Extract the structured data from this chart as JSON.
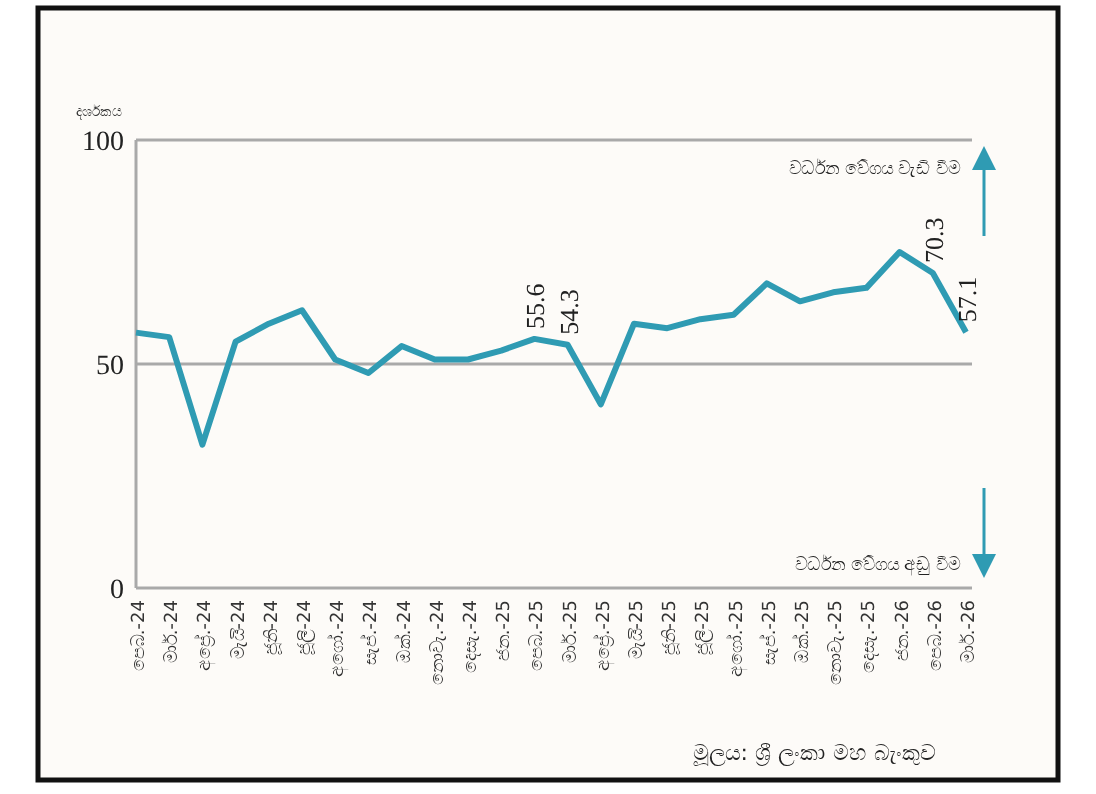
{
  "chart_data": {
    "type": "line",
    "ylabel": "දර්ශකය",
    "categories": [
      "පෙබ.-24",
      "මාර්.-24",
      "අප්‍රේ.-24",
      "මැයි-24",
      "ජූනි-24",
      "ජූලි-24",
      "අගෝ.-24",
      "සැප්.-24",
      "ඔක්.-24",
      "නොවැ.-24",
      "දෙසැ.-24",
      "ජන.-25",
      "පෙබ.-25",
      "මාර්.-25",
      "අප්‍රේ.-25",
      "මැයි-25",
      "ජූනි-25",
      "ජූලි-25",
      "අගෝ.-25",
      "සැප්.-25",
      "ඔක්.-25",
      "නොවැ.-25",
      "දෙසැ.-25",
      "ජන.-26",
      "පෙබ.-26",
      "මාර්.-26"
    ],
    "series": [
      {
        "color": "#2f9bb3",
        "values": [
          57,
          56,
          32,
          55,
          59,
          62,
          51,
          48,
          54,
          51,
          51,
          53,
          55.6,
          54.3,
          41,
          59,
          58,
          60,
          61,
          68,
          64,
          66,
          67,
          75,
          70.3,
          57.1
        ],
        "value_labels": [
          null,
          null,
          null,
          null,
          null,
          null,
          null,
          null,
          null,
          null,
          null,
          null,
          "55.6",
          "54.3",
          null,
          null,
          null,
          null,
          null,
          null,
          null,
          null,
          null,
          null,
          "70.3",
          "57.1"
        ]
      }
    ],
    "ylim": [
      0,
      100
    ],
    "yticks": [
      0,
      50,
      100
    ],
    "grid": "y",
    "marker": "none",
    "line_style": "solid",
    "annotations": [
      "වර්ධන වේගය වැඩි වීම",
      "වර්ධන වේගය අඩු වීම",
      "මූලය: ශ්‍රී ලංකා මහ බැංකුව"
    ]
  }
}
